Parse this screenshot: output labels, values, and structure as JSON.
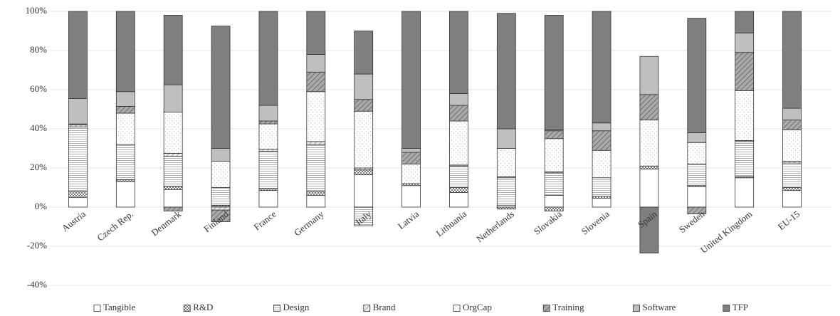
{
  "chart_data": {
    "type": "stacked-bar",
    "categories": [
      "Austria",
      "Czech Rep.",
      "Denmark",
      "Finland",
      "France",
      "Germany",
      "Italy",
      "Latvia",
      "Lithuania",
      "Netherlands",
      "Slovakia",
      "Slovenia",
      "Spain",
      "Sweden",
      "United Kingdom",
      "EU-15"
    ],
    "series": [
      {
        "name": "Tangible",
        "color": "#ffffff",
        "values": [
          5,
          13,
          9,
          0.5,
          8.5,
          6,
          16.5,
          11,
          7.5,
          1,
          6,
          4.5,
          19.5,
          10.5,
          15,
          8.5
        ]
      },
      {
        "name": "R&D",
        "color": "#9a9a9a",
        "values": [
          3,
          1,
          1.5,
          0.5,
          1,
          2,
          2.5,
          1,
          2.5,
          -1,
          -2,
          1,
          1.5,
          0.5,
          0.5,
          1.5
        ]
      },
      {
        "name": "Design",
        "color": "#c8c8c8",
        "values": [
          33,
          18,
          15.5,
          9,
          19,
          24,
          -9.5,
          0,
          11,
          14,
          11.5,
          9.5,
          0,
          11,
          18,
          12.5
        ]
      },
      {
        "name": "Brand",
        "color": "#bdbdbd",
        "values": [
          1,
          0,
          1.5,
          -1.5,
          1,
          1.5,
          1,
          0,
          0.5,
          0.5,
          0.5,
          0,
          0,
          0,
          0.5,
          1
        ]
      },
      {
        "name": "OrgCap",
        "color": "#d0d0d0",
        "values": [
          0,
          16,
          21,
          13.5,
          13,
          25.5,
          29,
          10,
          22.5,
          14.5,
          17,
          14,
          23.5,
          11,
          25.5,
          16
        ]
      },
      {
        "name": "Training",
        "color": "#8c8c8c",
        "values": [
          0.5,
          3.5,
          -2,
          -6,
          1.5,
          10,
          6,
          6,
          8,
          0,
          4,
          10,
          13,
          -3.5,
          19.5,
          5
        ]
      },
      {
        "name": "Software",
        "color": "#bfbfbf",
        "values": [
          13,
          7.5,
          14,
          6.5,
          8,
          9,
          13,
          2,
          6,
          10,
          0.5,
          4,
          19.5,
          5,
          10,
          6
        ]
      },
      {
        "name": "TFP",
        "color": "#7f7f7f",
        "values": [
          44.5,
          41,
          35.5,
          62.5,
          48,
          22,
          22,
          70,
          42,
          59,
          58.5,
          57,
          -23.5,
          58.5,
          11,
          49.5
        ]
      }
    ],
    "ylim": [
      -40,
      100
    ],
    "yticks": [
      {
        "value": -40,
        "label": "-40%"
      },
      {
        "value": -20,
        "label": "-20%"
      },
      {
        "value": 0,
        "label": "0%"
      },
      {
        "value": 20,
        "label": "20%"
      },
      {
        "value": 40,
        "label": "40%"
      },
      {
        "value": 60,
        "label": "60%"
      },
      {
        "value": 80,
        "label": "80%"
      },
      {
        "value": 100,
        "label": "100%"
      }
    ],
    "grid": true,
    "legend": "bottom"
  }
}
